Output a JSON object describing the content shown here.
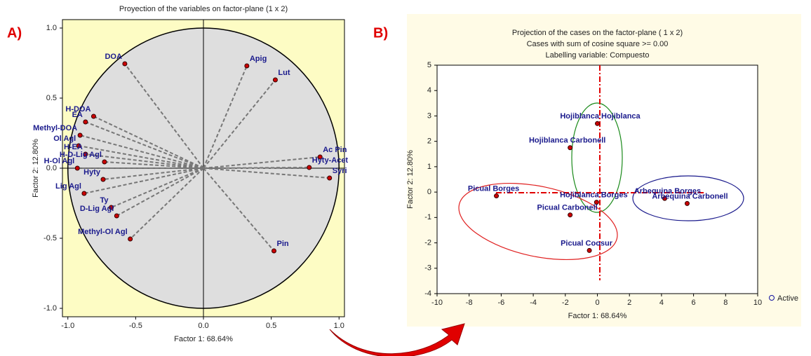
{
  "panel_labels": [
    "A)",
    "B)"
  ],
  "chart_data": [
    {
      "type": "scatter",
      "title": "Proyection of the variables on factor-plane (1 x 2)",
      "x_label": "Factor 1: 68.64%",
      "y_label": "Factor 2: 12.80%",
      "xlim": [
        -1.04,
        1.04
      ],
      "ylim": [
        -1.06,
        1.06
      ],
      "xticks": [
        {
          "value": -1,
          "label": "-1.0"
        },
        -0.5,
        {
          "value": 0,
          "label": "0.0"
        },
        0.5,
        {
          "value": 1,
          "label": "1.0"
        }
      ],
      "yticks": [
        {
          "value": -1,
          "label": "-1.0"
        },
        -0.5,
        {
          "value": 0,
          "label": "0.0"
        },
        0.5,
        {
          "value": 1,
          "label": "1.0"
        }
      ],
      "unit_circle": true,
      "rays_from_origin": true,
      "color": "#cc0000",
      "labels": [
        "DOA",
        "Apig",
        "Lut",
        "H-DOA",
        "EA",
        "Methyl-DOA",
        "Ol Agl",
        "H-EA",
        "H-D-Lig Agl",
        "H-Ol Agl",
        "Hyty",
        "Lig Agl",
        "Ty",
        "D-Lig Agl",
        "Methyl-Ol Agl",
        "Ac Pin",
        "Hyty-Acet",
        "Syri",
        "Pin"
      ],
      "x": [
        -0.58,
        0.32,
        0.53,
        -0.81,
        -0.87,
        -0.91,
        -0.92,
        -0.87,
        -0.73,
        -0.93,
        -0.74,
        -0.88,
        -0.68,
        -0.64,
        -0.54,
        0.86,
        0.78,
        0.93,
        0.52
      ],
      "values": [
        0.745,
        0.73,
        0.63,
        0.37,
        0.33,
        0.235,
        0.16,
        0.1,
        0.045,
        0.0,
        -0.08,
        -0.18,
        -0.28,
        -0.34,
        -0.505,
        0.08,
        0.005,
        -0.07,
        -0.59
      ]
    },
    {
      "type": "scatter",
      "title": "Projection of the cases on the factor-plane ( 1 x 2)",
      "subtitle": "Cases with sum of cosine square >= 0.00",
      "subtitle2": "Labelling variable: Compuesto",
      "x_label": "Factor 1: 68.64%",
      "y_label": "Factor 2: 12.80%",
      "xlim": [
        -10,
        10
      ],
      "ylim": [
        -4,
        5
      ],
      "xticks": [
        -10,
        -8,
        -6,
        -4,
        -2,
        0,
        2,
        4,
        6,
        8,
        10
      ],
      "yticks": [
        -4,
        -3,
        -2,
        -1,
        0,
        1,
        2,
        3,
        4,
        5
      ],
      "color": "#cc0000",
      "series": [
        {
          "name": "Active",
          "legend_color": "#1010a0",
          "labels": [
            "Hojiblanca Hojiblanca",
            "Hojiblanca Carbonell",
            "Picual Borges",
            "Hojiblanca Borges",
            "Picual Carbonell",
            "Picual Coosur",
            "Arbequina Borges",
            "Arbequina Carbonell"
          ],
          "x": [
            0.0,
            -1.7,
            -6.3,
            -0.05,
            -1.7,
            -0.5,
            4.2,
            5.6
          ],
          "values": [
            2.7,
            1.75,
            -0.15,
            -0.4,
            -0.9,
            -2.3,
            -0.25,
            -0.45
          ]
        }
      ]
    }
  ]
}
